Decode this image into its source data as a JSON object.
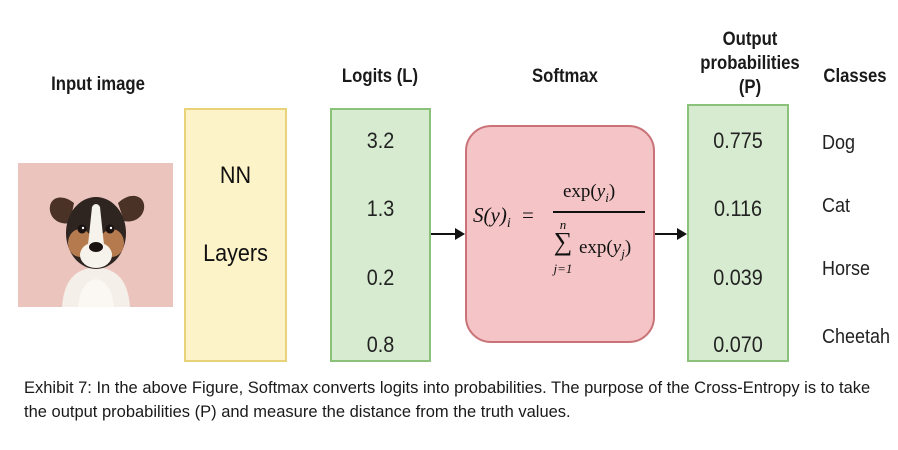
{
  "headers": {
    "input": "Input image",
    "logits": "Logits (L)",
    "softmax": "Softmax",
    "output_line1": "Output",
    "output_line2": "probabilities",
    "output_line3": "(P)",
    "classes": "Classes"
  },
  "nn_box": {
    "line1": "NN",
    "line2": "Layers"
  },
  "logits": [
    "3.2",
    "1.3",
    "0.2",
    "0.8"
  ],
  "probabilities": [
    "0.775",
    "0.116",
    "0.039",
    "0.070"
  ],
  "classes": [
    "Dog",
    "Cat",
    "Horse",
    "Cheetah"
  ],
  "formula": {
    "lhs": "S(y)",
    "lhs_sub": "i",
    "equals": "=",
    "num_fn": "exp(",
    "num_var": "y",
    "num_sub": "i",
    "sum_top": "n",
    "sum_bottom": "j=1",
    "den_fn": "exp(",
    "den_var": "y",
    "den_sub": "j"
  },
  "caption": "Exhibit 7: In the above Figure, Softmax converts logits into probabilities. The purpose of the Cross-Entropy is to take the output probabilities (P) and measure the distance from the truth values.",
  "colors": {
    "nn_fill": "#fdf3c8",
    "nn_border": "#e8d27a",
    "logit_fill": "#d6ebcf",
    "logit_border": "#8bc27a",
    "softmax_fill": "#f4c4c6",
    "softmax_border": "#c97378",
    "image_bg": "#eac4bd"
  }
}
